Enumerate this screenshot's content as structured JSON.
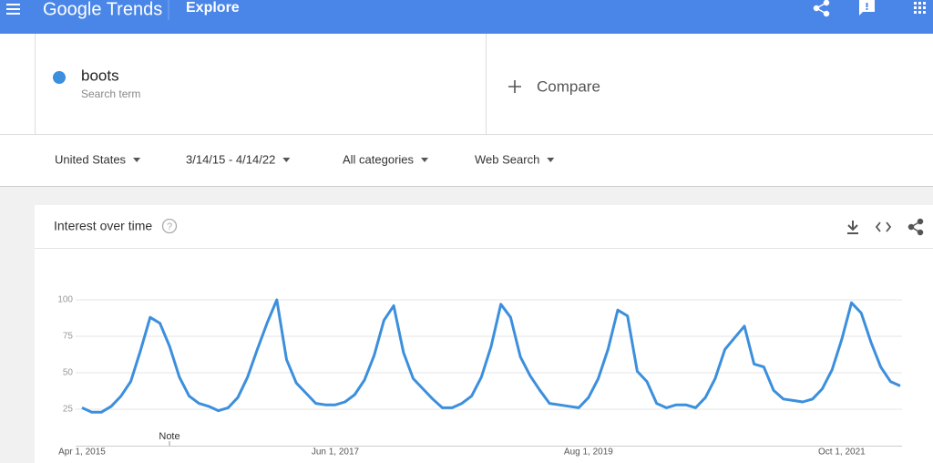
{
  "header": {
    "brand": "Google Trends",
    "section": "Explore"
  },
  "search": {
    "label": "Search term",
    "compare": "Compare"
  },
  "filters": [
    "United States",
    "3/14/15 - 4/14/22",
    "All categories",
    "Web Search"
  ],
  "chart_data": {
    "type": "line",
    "title": "Interest over time",
    "categories": [
      "Apr 1, 2015",
      null,
      null,
      null,
      null,
      null,
      null,
      null,
      null,
      null,
      null,
      null,
      null,
      null,
      null,
      null,
      null,
      null,
      null,
      null,
      null,
      null,
      null,
      null,
      null,
      null,
      "Jun 1, 2017",
      null,
      null,
      null,
      null,
      null,
      null,
      null,
      null,
      null,
      null,
      null,
      null,
      null,
      null,
      null,
      null,
      null,
      null,
      null,
      null,
      null,
      null,
      null,
      null,
      null,
      "Aug 1, 2019",
      null,
      null,
      null,
      null,
      null,
      null,
      null,
      null,
      null,
      null,
      null,
      null,
      null,
      null,
      null,
      null,
      null,
      null,
      null,
      null,
      null,
      null,
      null,
      null,
      null,
      "Oct 1, 2021",
      null,
      null,
      null,
      null,
      null,
      null
    ],
    "series": [
      {
        "name": "boots",
        "color": "#3c8fdd",
        "values": [
          26,
          23,
          23,
          27,
          34,
          44,
          65,
          88,
          84,
          68,
          47,
          34,
          29,
          27,
          24,
          26,
          33,
          47,
          66,
          84,
          100,
          59,
          43,
          36,
          29,
          28,
          28,
          30,
          35,
          45,
          62,
          86,
          96,
          64,
          46,
          39,
          32,
          26,
          26,
          29,
          34,
          47,
          68,
          97,
          88,
          61,
          48,
          38,
          29,
          28,
          27,
          26,
          33,
          46,
          66,
          93,
          89,
          51,
          44,
          29,
          26,
          28,
          28,
          26,
          33,
          46,
          66,
          74,
          82,
          56,
          54,
          38,
          32,
          31,
          30,
          32,
          39,
          52,
          73,
          98,
          91,
          71,
          54,
          44,
          41
        ]
      }
    ],
    "ylim": [
      0,
      100
    ],
    "yticks": [
      25,
      50,
      75,
      100
    ],
    "grid": true,
    "annotation": "Note"
  }
}
